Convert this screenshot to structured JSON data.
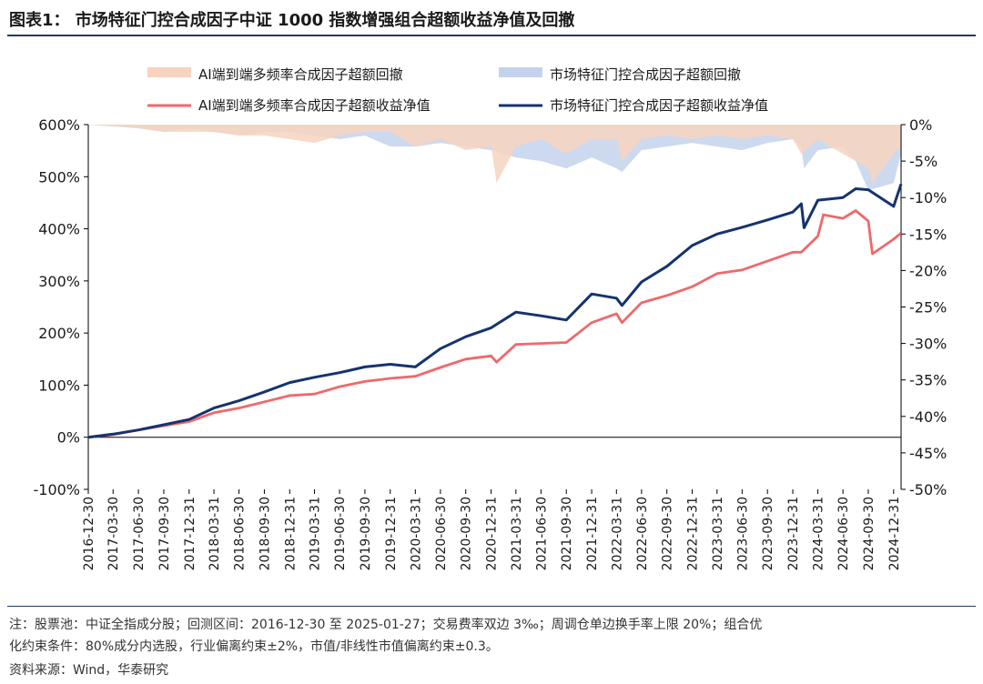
{
  "title": "图表1： 市场特征门控合成因子中证 1000 指数增强组合超额收益净值及回撤",
  "notes": {
    "line1": "注：股票池：中证全指成分股；回测区间：2016-12-30 至 2025-01-27；交易费率双边 3‰；周调仓单边换手率上限 20%；组合优",
    "line2": "化约束条件：80%成分内选股，行业偏离约束±2%，市值/非线性市值偏离约束±0.3。",
    "source": "资料来源：Wind，华泰研究"
  },
  "colors": {
    "ai_drawdown": "#f7d3c0",
    "mkt_drawdown": "#c4d2ec",
    "ai_nav": "#f0686a",
    "mkt_nav": "#14336f",
    "title_rule": "#1f3a68"
  },
  "chart_data": {
    "type": "line",
    "legend": [
      {
        "name": "AI端到端多频率合成因子超额回撤",
        "kind": "area",
        "color": "#f7d3c0"
      },
      {
        "name": "市场特征门控合成因子超额回撤",
        "kind": "area",
        "color": "#c4d2ec"
      },
      {
        "name": "AI端到端多频率合成因子超额收益净值",
        "kind": "line",
        "color": "#f0686a"
      },
      {
        "name": "市场特征门控合成因子超额收益净值",
        "kind": "line",
        "color": "#14336f"
      }
    ],
    "legend_position": "top",
    "x_start": "2016-12-30",
    "x_end": "2025-01-27",
    "x_ticks": [
      "2016-12-30",
      "2017-03-30",
      "2017-06-30",
      "2017-09-30",
      "2017-12-31",
      "2018-03-31",
      "2018-06-30",
      "2018-09-30",
      "2018-12-31",
      "2019-03-31",
      "2019-06-30",
      "2019-09-30",
      "2019-12-31",
      "2020-03-31",
      "2020-06-30",
      "2020-09-30",
      "2020-12-31",
      "2021-03-31",
      "2021-06-30",
      "2021-09-30",
      "2021-12-31",
      "2022-03-31",
      "2022-06-30",
      "2022-09-30",
      "2022-12-31",
      "2023-03-31",
      "2023-06-30",
      "2023-09-30",
      "2023-12-31",
      "2024-03-31",
      "2024-06-30",
      "2024-09-30",
      "2024-12-31"
    ],
    "y_left": {
      "min": -1.0,
      "max": 6.0,
      "ticks": [
        -1,
        0,
        1,
        2,
        3,
        4,
        5,
        6
      ],
      "tick_labels": [
        "-100%",
        "0%",
        "100%",
        "200%",
        "300%",
        "400%",
        "500%",
        "600%"
      ]
    },
    "y_right": {
      "min": -0.5,
      "max": 0.0,
      "ticks": [
        0,
        -0.05,
        -0.1,
        -0.15,
        -0.2,
        -0.25,
        -0.3,
        -0.35,
        -0.4,
        -0.45,
        -0.5
      ],
      "tick_labels": [
        "0%",
        "-5%",
        "-10%",
        "-15%",
        "-20%",
        "-25%",
        "-30%",
        "-35%",
        "-40%",
        "-45%",
        "-50%"
      ]
    },
    "series": [
      {
        "name": "AI端到端多频率合成因子超额收益净值",
        "axis": "left",
        "color": "#f0686a",
        "x": [
          "2016-12-30",
          "2017-03-30",
          "2017-06-30",
          "2017-09-30",
          "2017-12-31",
          "2018-03-31",
          "2018-06-30",
          "2018-09-30",
          "2018-12-31",
          "2019-03-31",
          "2019-06-30",
          "2019-09-30",
          "2019-12-31",
          "2020-03-31",
          "2020-06-30",
          "2020-09-30",
          "2020-12-31",
          "2021-01-20",
          "2021-03-31",
          "2021-06-30",
          "2021-09-30",
          "2021-12-31",
          "2022-03-31",
          "2022-04-20",
          "2022-06-30",
          "2022-09-30",
          "2022-12-31",
          "2023-03-31",
          "2023-06-30",
          "2023-09-30",
          "2023-12-31",
          "2024-01-31",
          "2024-03-31",
          "2024-04-20",
          "2024-06-30",
          "2024-08-15",
          "2024-09-30",
          "2024-10-15",
          "2024-12-31",
          "2025-01-27"
        ],
        "y": [
          0.0,
          0.05,
          0.14,
          0.22,
          0.3,
          0.47,
          0.56,
          0.68,
          0.8,
          0.83,
          0.97,
          1.07,
          1.13,
          1.17,
          1.34,
          1.5,
          1.56,
          1.44,
          1.78,
          1.8,
          1.82,
          2.2,
          2.37,
          2.2,
          2.58,
          2.72,
          2.89,
          3.14,
          3.21,
          3.38,
          3.55,
          3.55,
          3.86,
          4.27,
          4.2,
          4.35,
          4.15,
          3.52,
          3.8,
          3.92
        ]
      },
      {
        "name": "市场特征门控合成因子超额收益净值",
        "axis": "left",
        "color": "#14336f",
        "x": [
          "2016-12-30",
          "2017-03-30",
          "2017-06-30",
          "2017-09-30",
          "2017-12-31",
          "2018-03-31",
          "2018-06-30",
          "2018-09-30",
          "2018-12-31",
          "2019-03-31",
          "2019-06-30",
          "2019-09-30",
          "2019-12-31",
          "2020-03-31",
          "2020-06-30",
          "2020-09-30",
          "2020-12-31",
          "2021-03-31",
          "2021-06-30",
          "2021-09-30",
          "2021-12-31",
          "2022-03-31",
          "2022-04-20",
          "2022-06-30",
          "2022-09-30",
          "2022-12-31",
          "2023-03-31",
          "2023-06-30",
          "2023-09-30",
          "2023-12-31",
          "2024-01-31",
          "2024-02-10",
          "2024-03-31",
          "2024-06-30",
          "2024-08-15",
          "2024-09-30",
          "2024-12-31",
          "2025-01-27"
        ],
        "y": [
          0.0,
          0.06,
          0.14,
          0.24,
          0.34,
          0.56,
          0.7,
          0.87,
          1.05,
          1.15,
          1.24,
          1.35,
          1.4,
          1.35,
          1.7,
          1.93,
          2.1,
          2.4,
          2.33,
          2.25,
          2.75,
          2.67,
          2.53,
          2.98,
          3.28,
          3.68,
          3.9,
          4.03,
          4.17,
          4.32,
          4.48,
          4.02,
          4.55,
          4.6,
          4.77,
          4.75,
          4.43,
          4.86
        ]
      },
      {
        "name": "AI端到端多频率合成因子超额回撤",
        "axis": "right",
        "color": "#f7d3c0",
        "x": [
          "2016-12-30",
          "2017-06-30",
          "2017-09-30",
          "2017-12-31",
          "2018-03-31",
          "2018-06-30",
          "2018-09-30",
          "2018-12-31",
          "2019-03-31",
          "2019-06-30",
          "2019-09-30",
          "2019-12-31",
          "2020-03-31",
          "2020-06-30",
          "2020-09-30",
          "2020-12-31",
          "2021-01-20",
          "2021-03-31",
          "2021-06-30",
          "2021-09-30",
          "2021-12-31",
          "2022-03-31",
          "2022-04-20",
          "2022-06-30",
          "2022-09-30",
          "2022-12-31",
          "2023-03-31",
          "2023-06-30",
          "2023-09-30",
          "2023-12-31",
          "2024-01-31",
          "2024-03-31",
          "2024-06-30",
          "2024-08-15",
          "2024-09-30",
          "2024-10-15",
          "2024-12-31",
          "2025-01-27"
        ],
        "y": [
          0,
          -0.005,
          -0.01,
          -0.01,
          -0.01,
          -0.015,
          -0.015,
          -0.02,
          -0.025,
          -0.015,
          -0.01,
          -0.01,
          -0.03,
          -0.02,
          -0.035,
          -0.03,
          -0.08,
          -0.03,
          -0.02,
          -0.04,
          -0.02,
          -0.02,
          -0.05,
          -0.02,
          -0.015,
          -0.02,
          -0.015,
          -0.02,
          -0.015,
          -0.02,
          -0.04,
          -0.02,
          -0.04,
          -0.05,
          -0.06,
          -0.08,
          -0.04,
          -0.03
        ]
      },
      {
        "name": "市场特征门控合成因子超额回撤",
        "axis": "right",
        "color": "#c4d2ec",
        "x": [
          "2016-12-30",
          "2017-06-30",
          "2017-09-30",
          "2017-12-31",
          "2018-03-31",
          "2018-06-30",
          "2018-09-30",
          "2018-12-31",
          "2019-03-31",
          "2019-06-30",
          "2019-09-30",
          "2019-12-31",
          "2020-03-31",
          "2020-06-30",
          "2020-09-30",
          "2020-12-31",
          "2021-03-31",
          "2021-06-30",
          "2021-09-30",
          "2021-12-31",
          "2022-03-31",
          "2022-04-20",
          "2022-06-30",
          "2022-09-30",
          "2022-12-31",
          "2023-03-31",
          "2023-06-30",
          "2023-09-30",
          "2023-12-31",
          "2024-01-31",
          "2024-02-10",
          "2024-03-31",
          "2024-06-30",
          "2024-08-15",
          "2024-09-30",
          "2024-12-31",
          "2025-01-27"
        ],
        "y": [
          0,
          -0.005,
          -0.01,
          -0.005,
          -0.01,
          -0.015,
          -0.01,
          -0.01,
          -0.015,
          -0.02,
          -0.015,
          -0.03,
          -0.03,
          -0.025,
          -0.03,
          -0.035,
          -0.045,
          -0.05,
          -0.06,
          -0.045,
          -0.06,
          -0.065,
          -0.035,
          -0.03,
          -0.025,
          -0.03,
          -0.035,
          -0.025,
          -0.02,
          -0.03,
          -0.06,
          -0.035,
          -0.03,
          -0.05,
          -0.09,
          -0.08,
          -0.04
        ]
      }
    ]
  }
}
